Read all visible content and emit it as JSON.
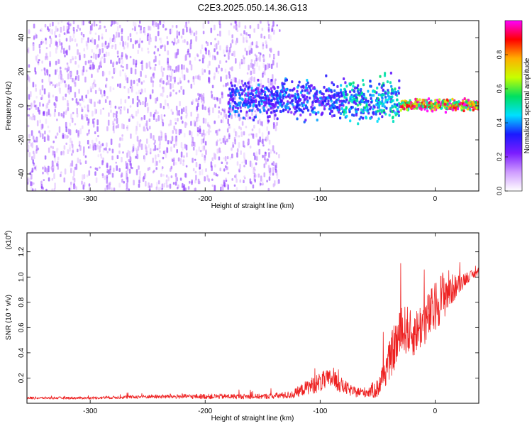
{
  "title": "C2E3.2025.050.14.36.G13",
  "chart_data": [
    {
      "type": "heatmap",
      "xlabel": "Height of straight line (km)",
      "ylabel": "Frequency (Hz)",
      "xlim": [
        -355,
        38
      ],
      "ylim": [
        -50,
        50
      ],
      "xticks": [
        -300,
        -200,
        -100,
        0
      ],
      "yticks": [
        -40,
        -20,
        0,
        20,
        40
      ],
      "colorbar": {
        "label": "Normalized spectral amplitude",
        "range": [
          0.0,
          1.0
        ],
        "ticks": [
          "0.0",
          "0.2",
          "0.4",
          "0.6",
          "0.8"
        ],
        "colormap": [
          "#ffffff",
          "#cf9cff",
          "#7b1cff",
          "#1a1aff",
          "#00e0ff",
          "#00e060",
          "#c8ff00",
          "#ffb000",
          "#ff0000",
          "#ff00ff"
        ]
      },
      "features": [
        {
          "x_range": [
            -355,
            -135
          ],
          "freq_range": [
            -50,
            50
          ],
          "amplitude": 0.18,
          "note": "broadband noise"
        },
        {
          "x_range": [
            -180,
            -80
          ],
          "center_hz": 3,
          "width_hz": 10,
          "amplitude": 0.35
        },
        {
          "x_range": [
            -80,
            -30
          ],
          "center_hz": 3,
          "width_hz": 12,
          "amplitude": 0.45
        },
        {
          "x_range": [
            -30,
            38
          ],
          "center_hz": 0,
          "width_hz": 3,
          "amplitude": 0.85
        }
      ]
    },
    {
      "type": "line",
      "xlabel": "Height of straight line (km)",
      "ylabel": "SNR (10 * v/v)",
      "y_scale_label": "(x10",
      "y_scale_exp": "4",
      "y_scale_close": ")",
      "xlim": [
        -355,
        38
      ],
      "ylim": [
        0.0,
        1.35
      ],
      "xticks": [
        -300,
        -200,
        -100,
        0
      ],
      "yticks": [
        0.2,
        0.4,
        0.6,
        0.8,
        1.0,
        1.2
      ],
      "color": "#ee2222",
      "series": [
        {
          "x": [
            -355,
            -300,
            -250,
            -200,
            -150,
            -125,
            -110,
            -100,
            -90,
            -80,
            -70,
            -60,
            -50,
            -45,
            -40,
            -35,
            -30,
            -25,
            -20,
            -15,
            -10,
            -5,
            0,
            5,
            10,
            15,
            20,
            25,
            30,
            38
          ],
          "y": [
            0.04,
            0.04,
            0.05,
            0.05,
            0.05,
            0.06,
            0.12,
            0.15,
            0.18,
            0.12,
            0.08,
            0.08,
            0.1,
            0.2,
            0.3,
            0.42,
            0.5,
            0.55,
            0.5,
            0.55,
            0.6,
            0.65,
            0.72,
            0.8,
            0.85,
            0.88,
            0.92,
            0.97,
            1.0,
            1.03
          ],
          "spread": [
            0.01,
            0.01,
            0.015,
            0.02,
            0.02,
            0.03,
            0.06,
            0.08,
            0.08,
            0.06,
            0.04,
            0.04,
            0.08,
            0.12,
            0.15,
            0.2,
            0.2,
            0.2,
            0.18,
            0.18,
            0.2,
            0.2,
            0.2,
            0.2,
            0.2,
            0.12,
            0.08,
            0.06,
            0.04,
            0.03
          ]
        }
      ]
    }
  ]
}
